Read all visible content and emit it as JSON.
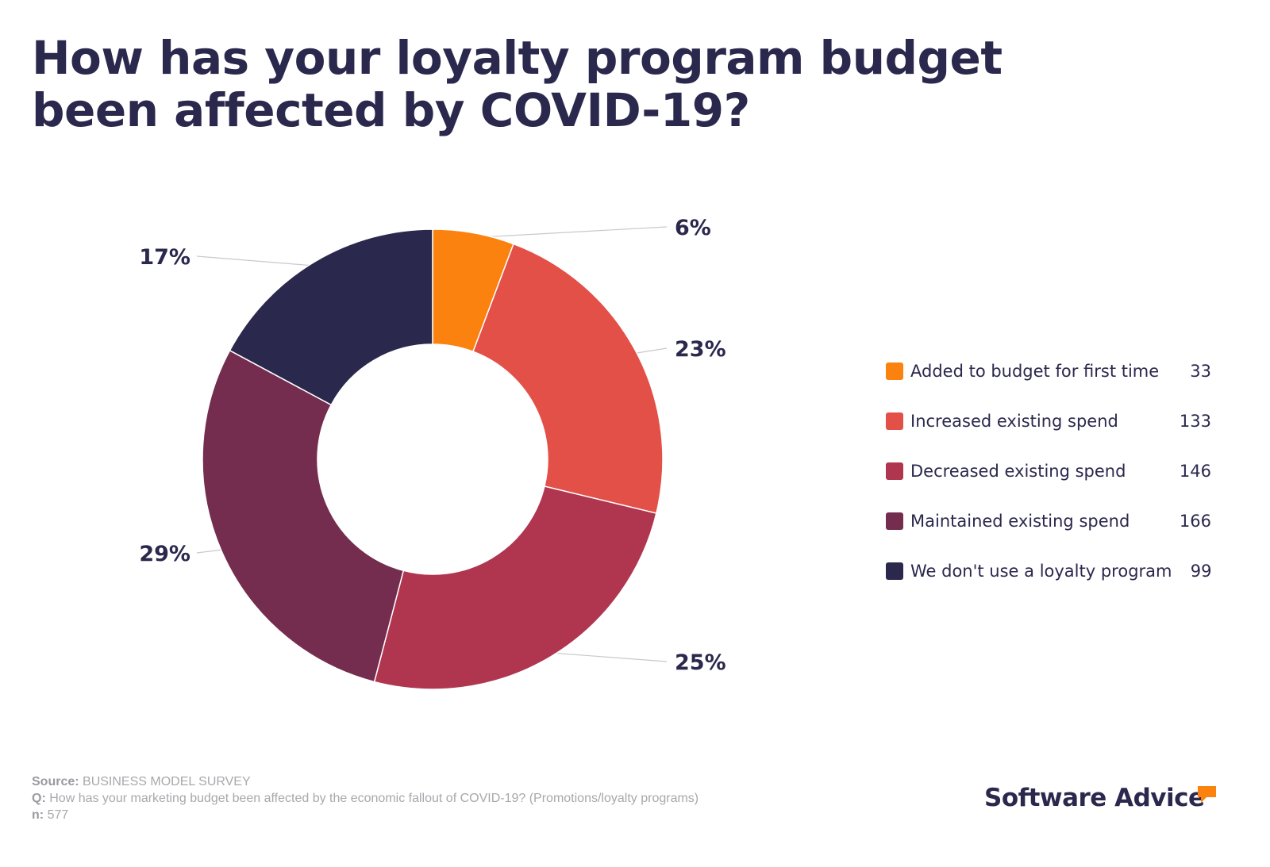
{
  "title": {
    "line1": "How has your loyalty program budget",
    "line2": "been affected by COVID-19?"
  },
  "chart_data": {
    "type": "pie",
    "variant": "donut",
    "title": "How has your loyalty program budget been affected by COVID-19?",
    "categories": [
      "Added to budget for first time",
      "Increased existing spend",
      "Decreased existing spend",
      "Maintained existing spend",
      "We don't use a loyalty program"
    ],
    "values": [
      33,
      133,
      146,
      166,
      99
    ],
    "percent_labels": [
      "6%",
      "23%",
      "25%",
      "29%",
      "17%"
    ],
    "colors": [
      "#fb820e",
      "#e35048",
      "#b03650",
      "#742d4f",
      "#2b284d"
    ],
    "total": 577,
    "start": "top",
    "direction": "clockwise",
    "legend_position": "right"
  },
  "legend": {
    "items": [
      {
        "label": "Added to budget for first time",
        "value": "33",
        "color": "#fb820e"
      },
      {
        "label": "Increased existing spend",
        "value": "133",
        "color": "#e35048"
      },
      {
        "label": "Decreased existing spend",
        "value": "146",
        "color": "#b03650"
      },
      {
        "label": "Maintained existing spend",
        "value": "166",
        "color": "#742d4f"
      },
      {
        "label": "We don't use a loyalty program",
        "value": "99",
        "color": "#2b284d"
      }
    ]
  },
  "footer": {
    "source_label": "Source:",
    "source_value": "BUSINESS MODEL SURVEY",
    "question_label": "Q:",
    "question_value": "How has your marketing budget been affected by the economic fallout of COVID-19? (Promotions/loyalty programs)",
    "n_label": "n:",
    "n_value": "577"
  },
  "brand": {
    "name": "Software Advice",
    "accent_color": "#fb820e"
  }
}
